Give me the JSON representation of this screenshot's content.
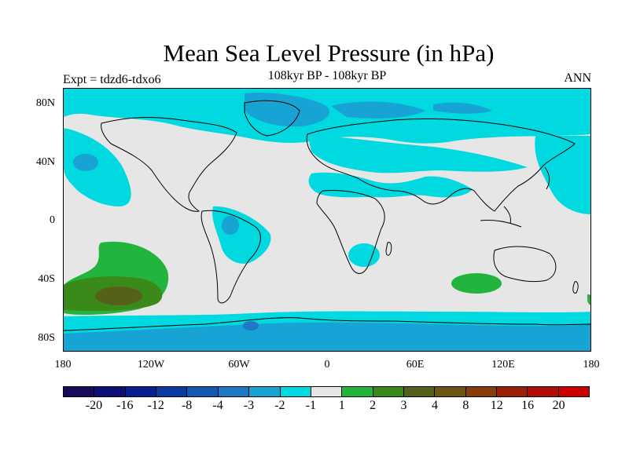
{
  "title": "Mean Sea Level Pressure (in hPa)",
  "subtitle": "108kyr BP - 108kyr BP",
  "experiment_label": "Expt = tdzd6-tdxo6",
  "season_label": "ANN",
  "y_axis_labels": [
    "80N",
    "40N",
    "0",
    "40S",
    "80S"
  ],
  "x_axis_labels": [
    "180",
    "120W",
    "60W",
    "0",
    "60E",
    "120E",
    "180"
  ],
  "colorbar": {
    "colors": [
      "#1a0a5c",
      "#0d0f78",
      "#06208f",
      "#0a3aa3",
      "#1458b5",
      "#1f78c6",
      "#17a4d4",
      "#00d9e0",
      "#e6e6e6",
      "#22b43c",
      "#3a8a1a",
      "#55601a",
      "#6c5512",
      "#883c0a",
      "#9a2008",
      "#b00c0a",
      "#cc0000"
    ],
    "labels": [
      "-20",
      "-16",
      "-12",
      "-8",
      "-4",
      "-3",
      "-2",
      "-1",
      "1",
      "2",
      "3",
      "4",
      "8",
      "12",
      "16",
      "20"
    ]
  },
  "map_fill_colors": {
    "background": "#e6e6e6",
    "minus1": "#00d9e0",
    "minus2": "#17a4d4",
    "minus3": "#1f78c6",
    "plus2": "#22b43c",
    "plus3": "#3a8a1a",
    "plus4": "#55601a"
  }
}
